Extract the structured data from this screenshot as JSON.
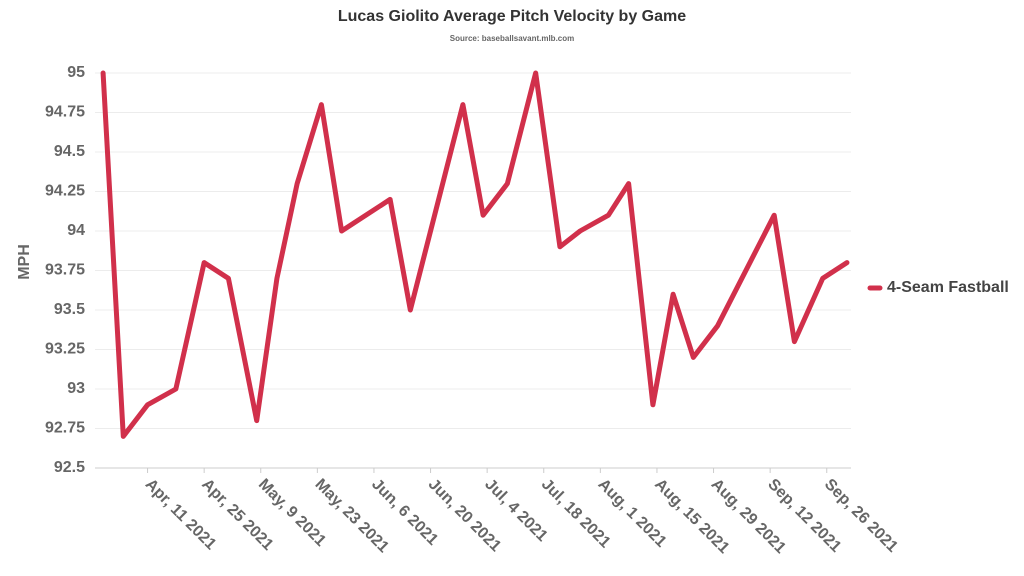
{
  "chart_data": {
    "type": "line",
    "title": "Lucas Giolito Average Pitch Velocity by Game",
    "subtitle": "Source: baseballsavant.mlb.com",
    "y_label": "MPH",
    "x": [
      "2021-03-31",
      "2021-04-05",
      "2021-04-11",
      "2021-04-18",
      "2021-04-25",
      "2021-05-01",
      "2021-05-08",
      "2021-05-13",
      "2021-05-18",
      "2021-05-24",
      "2021-05-29",
      "2021-06-10",
      "2021-06-15",
      "2021-06-21",
      "2021-06-28",
      "2021-07-03",
      "2021-07-09",
      "2021-07-16",
      "2021-07-22",
      "2021-07-27",
      "2021-08-03",
      "2021-08-08",
      "2021-08-14",
      "2021-08-19",
      "2021-08-24",
      "2021-08-30",
      "2021-09-13",
      "2021-09-18",
      "2021-09-25",
      "2021-10-01"
    ],
    "series": [
      {
        "name": "4-Seam Fastball",
        "color": "#d1304b",
        "values": [
          95,
          92.7,
          92.9,
          93.0,
          93.8,
          93.7,
          92.8,
          93.7,
          94.3,
          94.8,
          94.0,
          94.2,
          93.5,
          94.1,
          94.8,
          94.1,
          94.3,
          95.0,
          93.9,
          94.0,
          94.1,
          94.3,
          92.9,
          93.6,
          93.2,
          93.4,
          94.1,
          93.3,
          93.7,
          93.8
        ]
      }
    ],
    "xlim": [
      "2021-03-29",
      "2021-10-02"
    ],
    "xticks": [
      {
        "value": "2021-04-11",
        "label": "Apr, 11 2021"
      },
      {
        "value": "2021-04-25",
        "label": "Apr, 25 2021"
      },
      {
        "value": "2021-05-09",
        "label": "May, 9 2021"
      },
      {
        "value": "2021-05-23",
        "label": "May, 23 2021"
      },
      {
        "value": "2021-06-06",
        "label": "Jun, 6 2021"
      },
      {
        "value": "2021-06-20",
        "label": "Jun, 20 2021"
      },
      {
        "value": "2021-07-04",
        "label": "Jul, 4 2021"
      },
      {
        "value": "2021-07-18",
        "label": "Jul, 18 2021"
      },
      {
        "value": "2021-08-01",
        "label": "Aug, 1 2021"
      },
      {
        "value": "2021-08-15",
        "label": "Aug, 15 2021"
      },
      {
        "value": "2021-08-29",
        "label": "Aug, 29 2021"
      },
      {
        "value": "2021-09-12",
        "label": "Sep, 12 2021"
      },
      {
        "value": "2021-09-26",
        "label": "Sep, 26 2021"
      }
    ],
    "ylim": [
      92.5,
      95
    ],
    "yticks": [
      92.5,
      92.75,
      93,
      93.25,
      93.5,
      93.75,
      94,
      94.25,
      94.5,
      94.75,
      95
    ],
    "grid": true,
    "legend": "right"
  }
}
